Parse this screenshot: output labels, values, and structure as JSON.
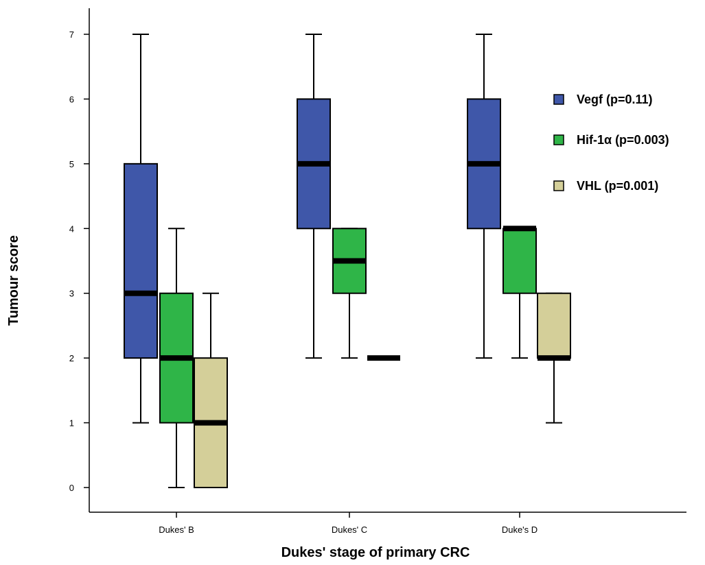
{
  "chart_data": {
    "type": "boxplot",
    "title": "",
    "xlabel": "Dukes' stage of primary CRC",
    "ylabel": "Tumour score",
    "ylim": [
      -0.4,
      7.4
    ],
    "yticks": [
      0,
      1,
      2,
      3,
      4,
      5,
      6,
      7
    ],
    "categories": [
      "Dukes' B",
      "Dukes' C",
      "Duke's D"
    ],
    "legend_position": "right",
    "grid": false,
    "series": [
      {
        "name": "Vegf  (p=0.11)",
        "color": "#3f57a9",
        "boxes": [
          {
            "min": 1,
            "q1": 2,
            "median": 3,
            "q3": 5,
            "max": 7
          },
          {
            "min": 2,
            "q1": 4,
            "median": 5,
            "q3": 6,
            "max": 7
          },
          {
            "min": 2,
            "q1": 4,
            "median": 5,
            "q3": 6,
            "max": 7
          }
        ]
      },
      {
        "name": "Hif-1α (p=0.003)",
        "color": "#2fb548",
        "boxes": [
          {
            "min": 0,
            "q1": 1,
            "median": 2,
            "q3": 3,
            "max": 4
          },
          {
            "min": 2,
            "q1": 3,
            "median": 3.5,
            "q3": 4,
            "max": 4
          },
          {
            "min": 2,
            "q1": 3,
            "median": 4,
            "q3": 4,
            "max": 4
          }
        ]
      },
      {
        "name": "VHL (p=0.001)",
        "color": "#d4cf99",
        "boxes": [
          {
            "min": 0,
            "q1": 0,
            "median": 1,
            "q3": 2,
            "max": 3
          },
          {
            "min": 2,
            "q1": 2,
            "median": 2,
            "q3": 2,
            "max": 2
          },
          {
            "min": 1,
            "q1": 2,
            "median": 2,
            "q3": 3,
            "max": 3
          }
        ]
      }
    ]
  }
}
